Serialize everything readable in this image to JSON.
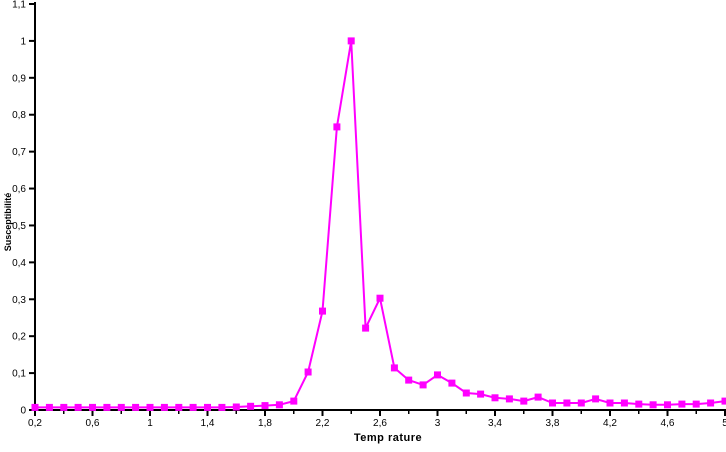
{
  "chart_data": {
    "type": "line",
    "title": "",
    "xlabel": "Temp rature",
    "ylabel": "Susceptibilité",
    "grid": false,
    "legend": false,
    "decimal_separator": ",",
    "background_color": "#FFFFFF",
    "axis_color": "#000000",
    "x_axis": {
      "min": 0.2,
      "max": 5,
      "major_ticks": [
        {
          "value": 0.2,
          "label": "0,2"
        },
        {
          "value": 0.6,
          "label": "0,6"
        },
        {
          "value": 1,
          "label": "1"
        },
        {
          "value": 1.4,
          "label": "1,4"
        },
        {
          "value": 1.8,
          "label": "1,8"
        },
        {
          "value": 2.2,
          "label": "2,2"
        },
        {
          "value": 2.6,
          "label": "2,6"
        },
        {
          "value": 3,
          "label": "3"
        },
        {
          "value": 3.4,
          "label": "3,4"
        },
        {
          "value": 3.8,
          "label": "3,8"
        },
        {
          "value": 4.2,
          "label": "4,2"
        },
        {
          "value": 4.6,
          "label": "4,6"
        },
        {
          "value": 5,
          "label": "5"
        }
      ],
      "minor_ticks": [
        0.4,
        0.8,
        1.2,
        1.6,
        2.0,
        2.4,
        2.8,
        3.2,
        3.6,
        4.0,
        4.4,
        4.8
      ]
    },
    "y_axis": {
      "min": 0,
      "max": 1.1,
      "ticks": [
        {
          "value": 0,
          "label": "0"
        },
        {
          "value": 0.1,
          "label": "0,1"
        },
        {
          "value": 0.2,
          "label": "0,2"
        },
        {
          "value": 0.3,
          "label": "0,3"
        },
        {
          "value": 0.4,
          "label": "0,4"
        },
        {
          "value": 0.5,
          "label": "0,5"
        },
        {
          "value": 0.6,
          "label": "0,6"
        },
        {
          "value": 0.7,
          "label": "0,7"
        },
        {
          "value": 0.8,
          "label": "0,8"
        },
        {
          "value": 0.9,
          "label": "0,9"
        },
        {
          "value": 1,
          "label": "1"
        },
        {
          "value": 1.1,
          "label": "1,1"
        }
      ]
    },
    "series": [
      {
        "name": "susceptibilite",
        "color": "#FF00FF",
        "marker": "square",
        "marker_size": 7,
        "line_width": 2,
        "x": [
          0.2,
          0.3,
          0.4,
          0.5,
          0.6,
          0.7,
          0.8,
          0.9,
          1.0,
          1.1,
          1.2,
          1.3,
          1.4,
          1.5,
          1.6,
          1.7,
          1.8,
          1.9,
          2.0,
          2.1,
          2.2,
          2.3,
          2.4,
          2.5,
          2.6,
          2.7,
          2.8,
          2.9,
          3.0,
          3.1,
          3.2,
          3.3,
          3.4,
          3.5,
          3.6,
          3.7,
          3.8,
          3.9,
          4.0,
          4.1,
          4.2,
          4.3,
          4.4,
          4.5,
          4.6,
          4.7,
          4.8,
          4.9,
          5.0
        ],
        "y": [
          0.007,
          0.007,
          0.007,
          0.007,
          0.007,
          0.007,
          0.007,
          0.007,
          0.007,
          0.007,
          0.007,
          0.007,
          0.007,
          0.007,
          0.008,
          0.01,
          0.012,
          0.014,
          0.024,
          0.103,
          0.268,
          0.767,
          1.0,
          0.222,
          0.303,
          0.114,
          0.081,
          0.068,
          0.095,
          0.073,
          0.046,
          0.043,
          0.033,
          0.03,
          0.024,
          0.035,
          0.019,
          0.019,
          0.019,
          0.03,
          0.019,
          0.019,
          0.016,
          0.014,
          0.014,
          0.016,
          0.016,
          0.019,
          0.024
        ]
      }
    ]
  }
}
